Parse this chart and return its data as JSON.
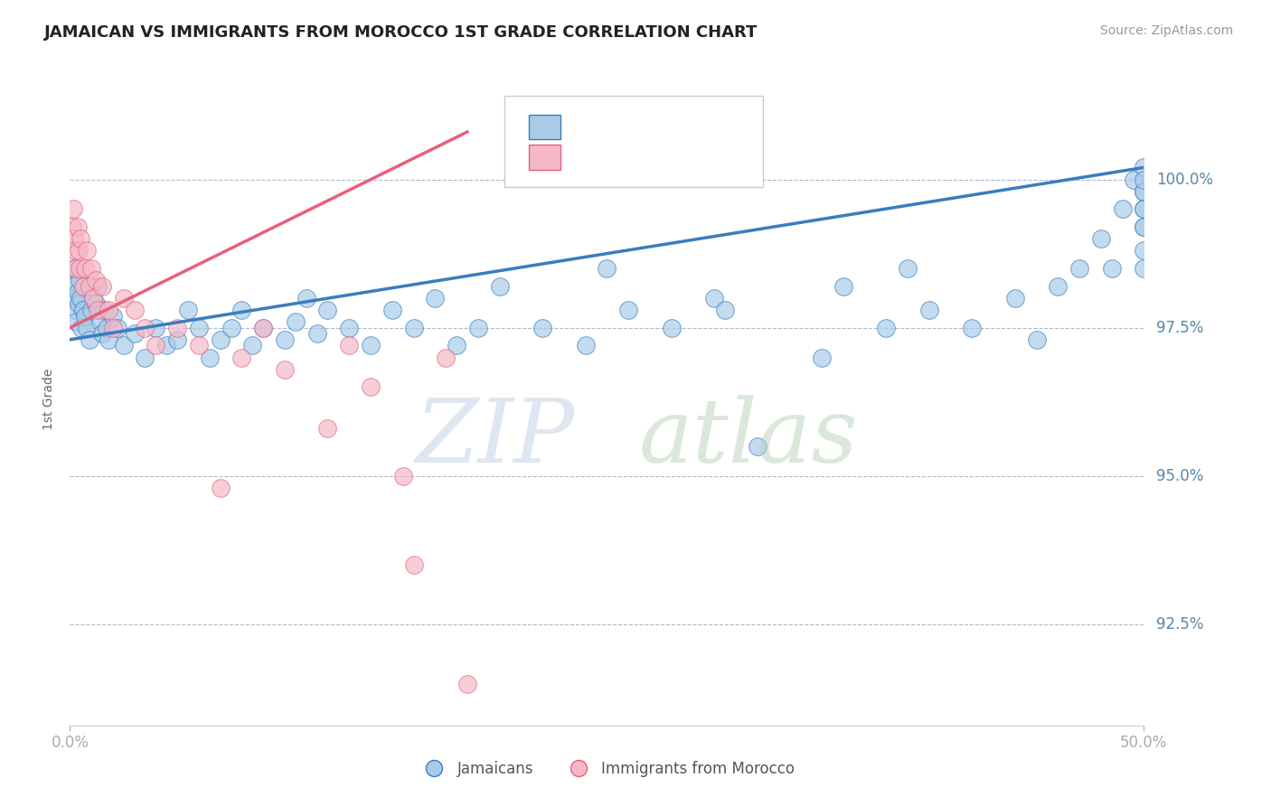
{
  "title": "JAMAICAN VS IMMIGRANTS FROM MOROCCO 1ST GRADE CORRELATION CHART",
  "source": "Source: ZipAtlas.com",
  "ylabel": "1st Grade",
  "yticks": [
    92.5,
    95.0,
    97.5,
    100.0
  ],
  "ytick_labels": [
    "92.5%",
    "95.0%",
    "97.5%",
    "100.0%"
  ],
  "xmin": 0.0,
  "xmax": 50.0,
  "ymin": 90.8,
  "ymax": 101.8,
  "legend_label_blue": "Jamaicans",
  "legend_label_pink": "Immigrants from Morocco",
  "blue_color": "#a8cce8",
  "pink_color": "#f5b8c8",
  "line_blue_color": "#3a7dbf",
  "line_pink_color": "#e8607a",
  "blue_scatter_x": [
    0.1,
    0.15,
    0.2,
    0.25,
    0.3,
    0.35,
    0.4,
    0.45,
    0.5,
    0.55,
    0.6,
    0.65,
    0.7,
    0.8,
    0.9,
    1.0,
    1.1,
    1.2,
    1.3,
    1.4,
    1.5,
    1.6,
    1.7,
    1.8,
    2.0,
    2.2,
    2.5,
    3.0,
    3.5,
    4.0,
    4.5,
    5.0,
    5.5,
    6.0,
    6.5,
    7.0,
    7.5,
    8.0,
    8.5,
    9.0,
    10.0,
    10.5,
    11.0,
    11.5,
    12.0,
    13.0,
    14.0,
    15.0,
    16.0,
    17.0,
    18.0,
    19.0,
    20.0,
    22.0,
    24.0,
    25.0,
    26.0,
    28.0,
    30.0,
    30.5,
    32.0,
    35.0,
    36.0,
    38.0,
    39.0,
    40.0,
    42.0,
    44.0,
    45.0,
    46.0,
    47.0,
    48.0,
    48.5,
    49.0,
    49.5,
    50.0,
    50.0,
    50.0,
    50.0,
    50.0,
    50.0,
    50.0,
    50.0,
    50.0,
    50.0
  ],
  "blue_scatter_y": [
    98.2,
    98.5,
    97.8,
    98.0,
    97.6,
    98.1,
    97.9,
    98.3,
    98.0,
    97.5,
    97.8,
    98.2,
    97.7,
    97.5,
    97.3,
    97.8,
    98.0,
    97.9,
    98.2,
    97.6,
    97.4,
    97.8,
    97.5,
    97.3,
    97.7,
    97.5,
    97.2,
    97.4,
    97.0,
    97.5,
    97.2,
    97.3,
    97.8,
    97.5,
    97.0,
    97.3,
    97.5,
    97.8,
    97.2,
    97.5,
    97.3,
    97.6,
    98.0,
    97.4,
    97.8,
    97.5,
    97.2,
    97.8,
    97.5,
    98.0,
    97.2,
    97.5,
    98.2,
    97.5,
    97.2,
    98.5,
    97.8,
    97.5,
    98.0,
    97.8,
    95.5,
    97.0,
    98.2,
    97.5,
    98.5,
    97.8,
    97.5,
    98.0,
    97.3,
    98.2,
    98.5,
    99.0,
    98.5,
    99.5,
    100.0,
    99.8,
    99.5,
    99.2,
    98.8,
    100.2,
    99.8,
    99.5,
    100.0,
    99.2,
    98.5
  ],
  "pink_scatter_x": [
    0.1,
    0.15,
    0.2,
    0.25,
    0.3,
    0.35,
    0.4,
    0.45,
    0.5,
    0.6,
    0.7,
    0.8,
    0.9,
    1.0,
    1.1,
    1.2,
    1.3,
    1.5,
    1.8,
    2.0,
    2.5,
    3.0,
    3.5,
    4.0,
    5.0,
    6.0,
    7.0,
    8.0,
    9.0,
    10.0,
    12.0,
    13.0,
    14.0,
    15.5,
    16.0,
    17.5,
    18.5
  ],
  "pink_scatter_y": [
    99.2,
    99.5,
    99.0,
    98.8,
    98.5,
    99.2,
    98.8,
    98.5,
    99.0,
    98.2,
    98.5,
    98.8,
    98.2,
    98.5,
    98.0,
    98.3,
    97.8,
    98.2,
    97.8,
    97.5,
    98.0,
    97.8,
    97.5,
    97.2,
    97.5,
    97.2,
    94.8,
    97.0,
    97.5,
    96.8,
    95.8,
    97.2,
    96.5,
    95.0,
    93.5,
    97.0,
    91.5
  ],
  "blue_line_x": [
    0.0,
    50.0
  ],
  "blue_line_y": [
    97.3,
    100.2
  ],
  "pink_line_x": [
    0.0,
    18.5
  ],
  "pink_line_y": [
    97.5,
    100.8
  ]
}
